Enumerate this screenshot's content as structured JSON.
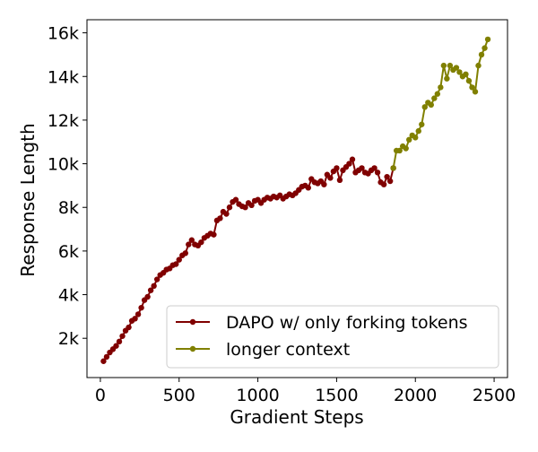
{
  "chart_data": {
    "type": "line",
    "title": "",
    "xlabel": "Gradient Steps",
    "ylabel": "Response Length",
    "xlim": [
      -85,
      2585
    ],
    "ylim": [
      200,
      16600
    ],
    "xticks": [
      0,
      500,
      1000,
      1500,
      2000,
      2500
    ],
    "xtick_labels": [
      "0",
      "500",
      "1000",
      "1500",
      "2000",
      "2500"
    ],
    "yticks": [
      2000,
      4000,
      6000,
      8000,
      10000,
      12000,
      14000,
      16000
    ],
    "ytick_labels": [
      "2k",
      "4k",
      "6k",
      "8k",
      "10k",
      "12k",
      "14k",
      "16k"
    ],
    "grid": false,
    "legend_position": "lower right",
    "series": [
      {
        "name": "DAPO w/ only forking tokens",
        "color": "#800000",
        "x": [
          20,
          40,
          60,
          80,
          100,
          120,
          140,
          160,
          180,
          200,
          220,
          240,
          260,
          280,
          300,
          320,
          340,
          360,
          380,
          400,
          420,
          440,
          460,
          480,
          500,
          520,
          540,
          560,
          580,
          600,
          620,
          640,
          660,
          680,
          700,
          720,
          740,
          760,
          780,
          800,
          820,
          840,
          860,
          880,
          900,
          920,
          940,
          960,
          980,
          1000,
          1020,
          1040,
          1060,
          1080,
          1100,
          1120,
          1140,
          1160,
          1180,
          1200,
          1220,
          1240,
          1260,
          1280,
          1300,
          1320,
          1340,
          1360,
          1380,
          1400,
          1420,
          1440,
          1460,
          1480,
          1500,
          1520,
          1540,
          1560,
          1580,
          1600,
          1620,
          1640,
          1660,
          1680,
          1700,
          1720,
          1740,
          1760,
          1780,
          1800,
          1820,
          1840,
          1860
        ],
        "values": [
          950,
          1150,
          1350,
          1500,
          1650,
          1850,
          2100,
          2350,
          2500,
          2800,
          2900,
          3100,
          3400,
          3750,
          3900,
          4200,
          4400,
          4700,
          4900,
          5000,
          5150,
          5200,
          5350,
          5400,
          5600,
          5800,
          5900,
          6300,
          6500,
          6300,
          6250,
          6400,
          6600,
          6700,
          6800,
          6750,
          7400,
          7500,
          7800,
          7700,
          8000,
          8250,
          8350,
          8150,
          8050,
          8000,
          8200,
          8100,
          8300,
          8350,
          8200,
          8350,
          8450,
          8400,
          8500,
          8450,
          8550,
          8400,
          8500,
          8600,
          8550,
          8650,
          8800,
          8950,
          9000,
          8900,
          9300,
          9150,
          9100,
          9200,
          9050,
          9500,
          9350,
          9650,
          9800,
          9250,
          9700,
          9850,
          10000,
          10200,
          9600,
          9700,
          9800,
          9600,
          9550,
          9700,
          9800,
          9600,
          9150,
          9050,
          9400,
          9200,
          9800
        ]
      },
      {
        "name": "longer context",
        "color": "#808000",
        "x": [
          1860,
          1880,
          1900,
          1920,
          1940,
          1960,
          1980,
          2000,
          2020,
          2040,
          2060,
          2080,
          2100,
          2120,
          2140,
          2160,
          2180,
          2200,
          2220,
          2240,
          2260,
          2280,
          2300,
          2320,
          2340,
          2360,
          2380,
          2400,
          2420,
          2440,
          2460
        ],
        "values": [
          9800,
          10600,
          10600,
          10800,
          10700,
          11100,
          11300,
          11200,
          11500,
          11800,
          12600,
          12800,
          12700,
          13000,
          13200,
          13500,
          14500,
          13900,
          14500,
          14300,
          14400,
          14200,
          14000,
          14100,
          13800,
          13500,
          13300,
          14500,
          15000,
          15300,
          15700
        ]
      }
    ]
  }
}
